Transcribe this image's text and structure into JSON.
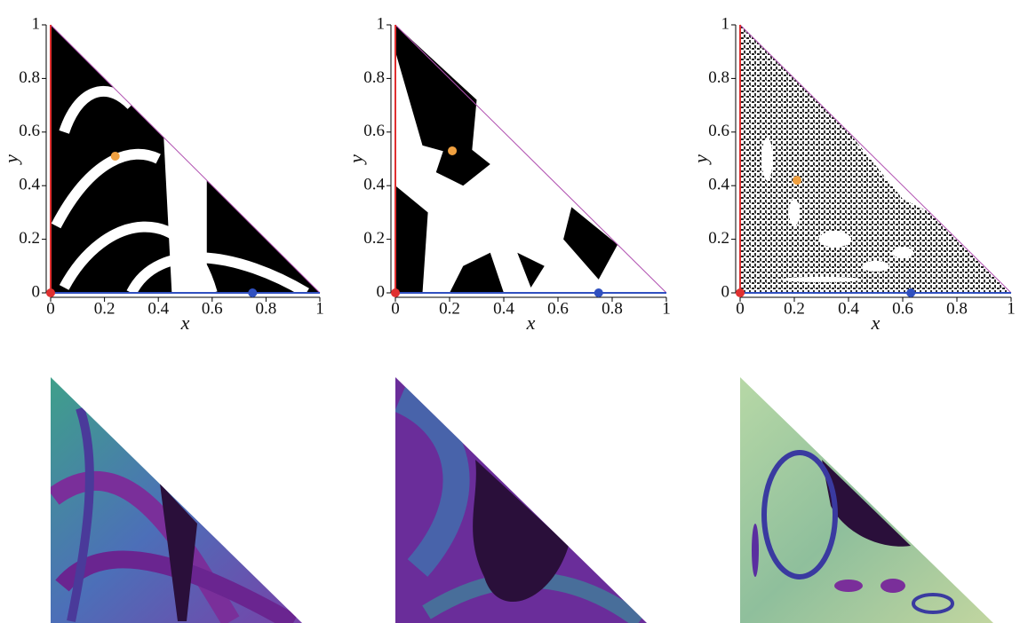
{
  "chart_data": [
    {
      "type": "scatter",
      "xlabel": "x",
      "ylabel": "y",
      "xlim": [
        0,
        1
      ],
      "ylim": [
        0,
        1
      ],
      "xticks": [
        0,
        0.2,
        0.4,
        0.6,
        0.8,
        1
      ],
      "yticks": [
        0,
        0.2,
        0.4,
        0.6,
        0.8,
        1
      ],
      "series": [
        {
          "color": "#f0a040",
          "x": [
            0.24
          ],
          "values": [
            0.51
          ]
        },
        {
          "color": "#e03030",
          "x": [
            0
          ],
          "values": [
            0
          ]
        },
        {
          "color": "#3050c0",
          "x": [
            0.75
          ],
          "values": [
            0
          ]
        }
      ]
    },
    {
      "type": "scatter",
      "xlabel": "x",
      "ylabel": "y",
      "xlim": [
        0,
        1
      ],
      "ylim": [
        0,
        1
      ],
      "xticks": [
        0,
        0.2,
        0.4,
        0.6,
        0.8,
        1
      ],
      "yticks": [
        0,
        0.2,
        0.4,
        0.6,
        0.8,
        1
      ],
      "series": [
        {
          "color": "#f0a040",
          "x": [
            0.21
          ],
          "values": [
            0.53
          ]
        },
        {
          "color": "#e03030",
          "x": [
            0
          ],
          "values": [
            0
          ]
        },
        {
          "color": "#3050c0",
          "x": [
            0.75
          ],
          "values": [
            0
          ]
        }
      ]
    },
    {
      "type": "scatter",
      "xlabel": "x",
      "ylabel": "y",
      "xlim": [
        0,
        1
      ],
      "ylim": [
        0,
        1
      ],
      "xticks": [
        0,
        0.2,
        0.4,
        0.6,
        0.8,
        1
      ],
      "yticks": [
        0,
        0.2,
        0.4,
        0.6,
        0.8,
        1
      ],
      "series": [
        {
          "color": "#f0a040",
          "x": [
            0.21
          ],
          "values": [
            0.42
          ]
        },
        {
          "color": "#e03030",
          "x": [
            0
          ],
          "values": [
            0
          ]
        },
        {
          "color": "#3050c0",
          "x": [
            0.63
          ],
          "values": [
            0
          ]
        }
      ]
    }
  ]
}
